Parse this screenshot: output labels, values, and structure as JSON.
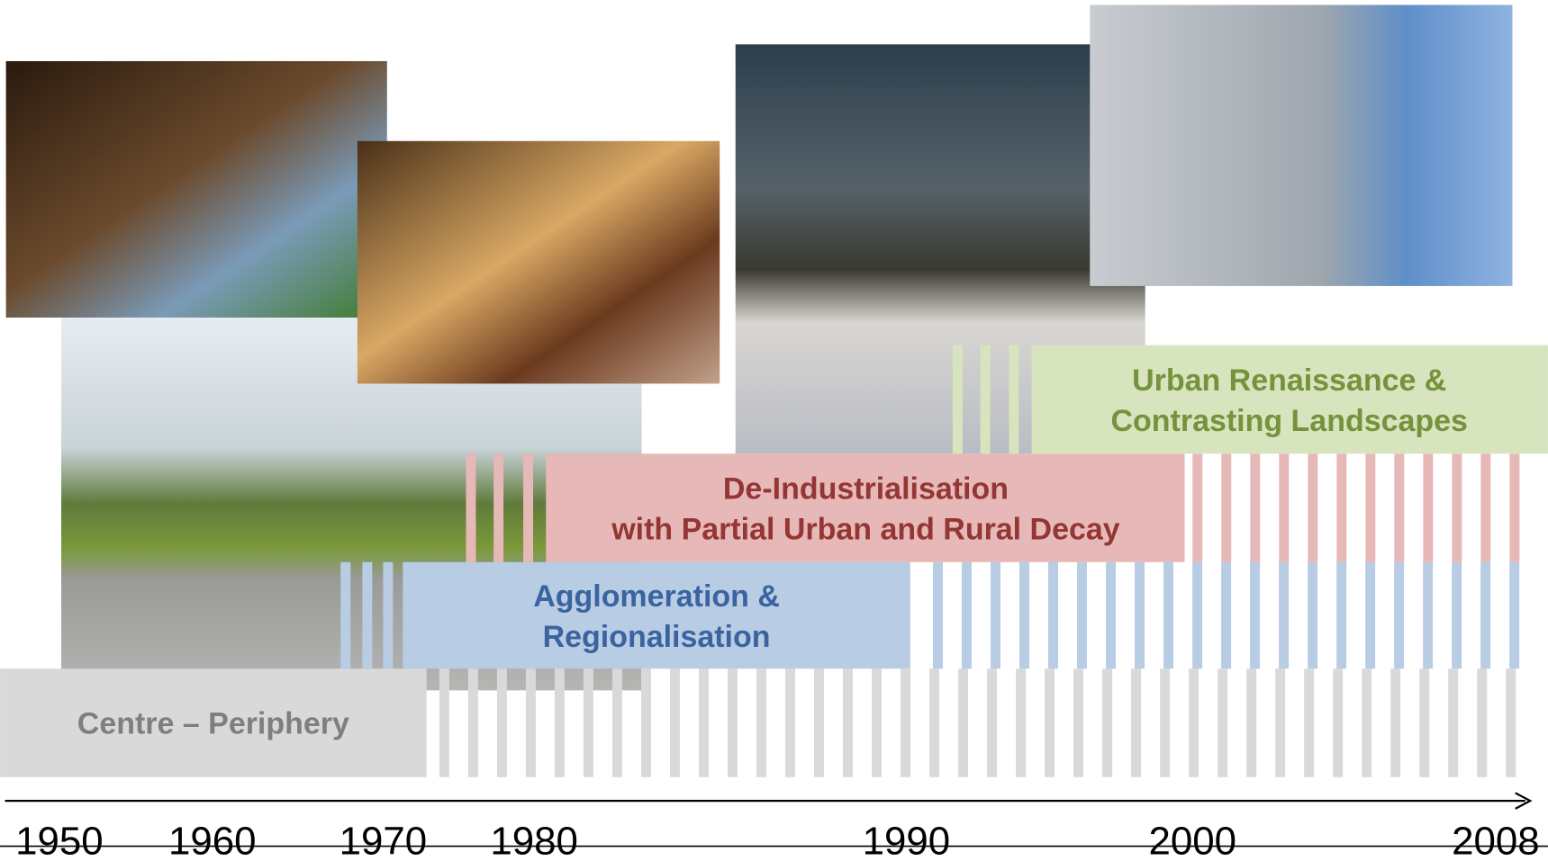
{
  "phases": [
    {
      "lines": [
        "Centre – Periphery"
      ]
    },
    {
      "lines": [
        "Agglomeration &",
        "Regionalisation"
      ]
    },
    {
      "lines": [
        "De-Industrialisation",
        "with Partial Urban and Rural Decay"
      ]
    },
    {
      "lines": [
        "Urban Renaissance &",
        "Contrasting Landscapes"
      ]
    }
  ],
  "timeline": {
    "years": [
      "1950",
      "1960",
      "1970",
      "1980",
      "1990",
      "2000",
      "2008"
    ]
  }
}
